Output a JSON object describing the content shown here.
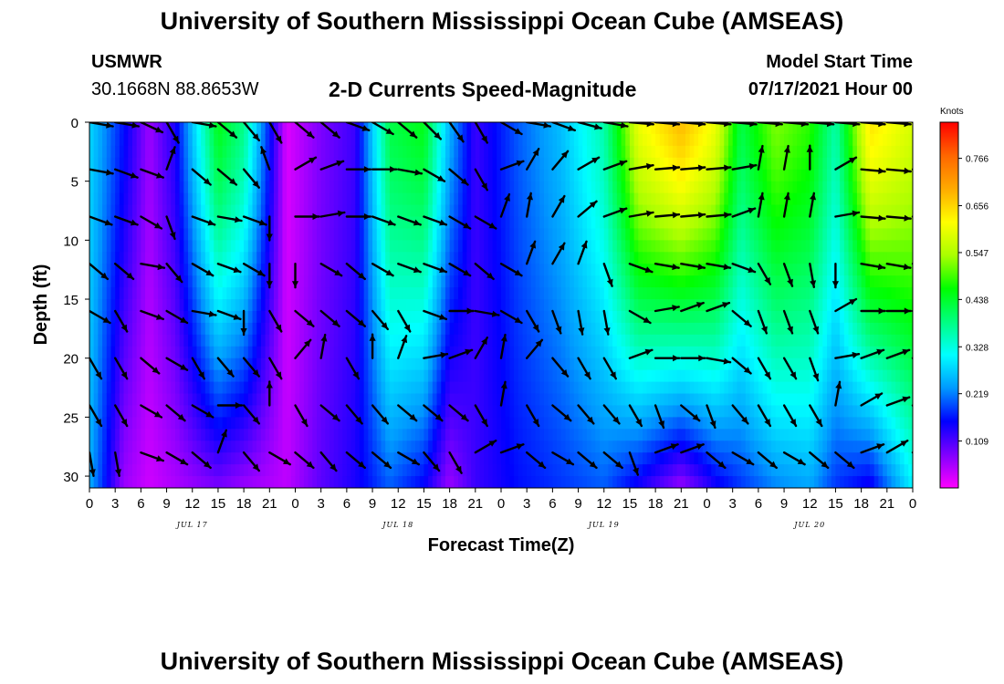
{
  "header": {
    "top_title": "University of Southern Mississippi Ocean Cube (AMSEAS)",
    "bottom_title": "University of Southern Mississippi Ocean Cube (AMSEAS)",
    "station": "USMWR",
    "coordinates": "30.1668N  88.8653W",
    "plot_title": "2-D Currents Speed-Magnitude",
    "model_start_label": "Model Start Time",
    "model_start_value": "07/17/2021 Hour 00"
  },
  "chart_data": {
    "type": "heatmap",
    "title": "2-D Currents Speed-Magnitude",
    "xlabel": "Forecast Time(Z)",
    "ylabel": "Depth (ft)",
    "x_tick_labels": [
      "0",
      "3",
      "6",
      "9",
      "12",
      "15",
      "18",
      "21",
      "0",
      "3",
      "6",
      "9",
      "12",
      "15",
      "18",
      "21",
      "0",
      "3",
      "6",
      "9",
      "12",
      "15",
      "18",
      "21",
      "0",
      "3",
      "6",
      "9",
      "12",
      "15",
      "18",
      "21",
      "0"
    ],
    "x_range_hours": [
      0,
      96
    ],
    "day_labels": [
      {
        "label": "JUL 17",
        "hour": 12
      },
      {
        "label": "JUL 18",
        "hour": 36
      },
      {
        "label": "JUL 19",
        "hour": 60
      },
      {
        "label": "JUL 20",
        "hour": 84
      }
    ],
    "y_ticks": [
      0,
      5,
      10,
      15,
      20,
      25,
      30
    ],
    "ylim": [
      0,
      31
    ],
    "y_inverted": true,
    "colorbar": {
      "title": "Knots",
      "tick_values": [
        0.766,
        0.656,
        0.547,
        0.438,
        0.328,
        0.219,
        0.109
      ],
      "tick_labels": [
        "0.766",
        "0.656",
        "0.547",
        "0.438",
        "0.328",
        "0.219",
        "0.109"
      ],
      "range": [
        0.0,
        0.85
      ],
      "colors": [
        "#ff00ff",
        "#8000ff",
        "#0000ff",
        "#0099ff",
        "#00ffff",
        "#00ff80",
        "#00ff00",
        "#aaff00",
        "#ffff00",
        "#ffaa00",
        "#ff6600",
        "#ff0000"
      ]
    },
    "grid": false,
    "speed_profiles": [
      {
        "hour": 0,
        "surface": 0.28,
        "bottom": 0.25
      },
      {
        "hour": 4,
        "surface": 0.16,
        "bottom": 0.06
      },
      {
        "hour": 7,
        "surface": 0.06,
        "bottom": 0.03
      },
      {
        "hour": 10,
        "surface": 0.14,
        "bottom": 0.05
      },
      {
        "hour": 15,
        "surface": 0.45,
        "bottom": 0.08
      },
      {
        "hour": 18,
        "surface": 0.38,
        "bottom": 0.06
      },
      {
        "hour": 23,
        "surface": 0.02,
        "bottom": 0.04
      },
      {
        "hour": 27,
        "surface": 0.08,
        "bottom": 0.1
      },
      {
        "hour": 31,
        "surface": 0.12,
        "bottom": 0.14
      },
      {
        "hour": 35,
        "surface": 0.42,
        "bottom": 0.2
      },
      {
        "hour": 39,
        "surface": 0.45,
        "bottom": 0.15
      },
      {
        "hour": 42,
        "surface": 0.25,
        "bottom": 0.06
      },
      {
        "hour": 45,
        "surface": 0.12,
        "bottom": 0.12
      },
      {
        "hour": 50,
        "surface": 0.2,
        "bottom": 0.16
      },
      {
        "hour": 55,
        "surface": 0.26,
        "bottom": 0.18
      },
      {
        "hour": 60,
        "surface": 0.36,
        "bottom": 0.2
      },
      {
        "hour": 64,
        "surface": 0.6,
        "bottom": 0.14
      },
      {
        "hour": 69,
        "surface": 0.68,
        "bottom": 0.06
      },
      {
        "hour": 73,
        "surface": 0.6,
        "bottom": 0.14
      },
      {
        "hour": 76,
        "surface": 0.42,
        "bottom": 0.18
      },
      {
        "hour": 80,
        "surface": 0.52,
        "bottom": 0.22
      },
      {
        "hour": 84,
        "surface": 0.48,
        "bottom": 0.24
      },
      {
        "hour": 87,
        "surface": 0.36,
        "bottom": 0.18
      },
      {
        "hour": 91,
        "surface": 0.64,
        "bottom": 0.14
      },
      {
        "hour": 96,
        "surface": 0.58,
        "bottom": 0.3
      }
    ],
    "vector_rows_ft": [
      0,
      4,
      8,
      12,
      16,
      20,
      24,
      28
    ],
    "vector_hours": [
      0,
      3,
      6,
      9,
      12,
      15,
      18,
      21,
      24,
      27,
      30,
      33,
      36,
      39,
      42,
      45,
      48,
      51,
      54,
      57,
      60,
      63,
      66,
      69,
      72,
      75,
      78,
      81,
      84,
      87,
      90,
      93,
      96
    ],
    "vector_directions_deg": [
      [
        -10,
        -10,
        -25,
        -60,
        -10,
        -40,
        -50,
        -60,
        -40,
        -40,
        -20,
        -30,
        -40,
        -45,
        -55,
        -60,
        -30,
        -10,
        -20,
        -15,
        -10,
        -5,
        -5,
        -5,
        -5,
        -5,
        -5,
        -5,
        -5,
        -5,
        -5,
        -5,
        -10
      ],
      [
        -10,
        -20,
        -20,
        70,
        -40,
        -40,
        -50,
        110,
        30,
        20,
        0,
        0,
        -10,
        -30,
        -40,
        -60,
        20,
        60,
        50,
        30,
        20,
        10,
        5,
        5,
        5,
        10,
        80,
        80,
        90,
        30,
        -5,
        -5,
        -10
      ],
      [
        -20,
        -20,
        -30,
        -70,
        -20,
        -10,
        -20,
        -90,
        0,
        10,
        0,
        -20,
        -20,
        -20,
        -30,
        -30,
        70,
        80,
        60,
        40,
        20,
        10,
        5,
        5,
        5,
        20,
        80,
        80,
        80,
        10,
        -5,
        -5,
        -15
      ],
      [
        -40,
        -40,
        -10,
        -50,
        -30,
        -20,
        -30,
        -90,
        -90,
        -30,
        -40,
        -30,
        -20,
        -20,
        -30,
        -40,
        -30,
        70,
        60,
        70,
        -70,
        -20,
        -10,
        -10,
        -10,
        -20,
        -60,
        -70,
        -80,
        -90,
        -10,
        -10,
        -5
      ],
      [
        -30,
        -60,
        -20,
        -30,
        -10,
        -20,
        -90,
        -60,
        -40,
        -40,
        -40,
        -50,
        -60,
        -20,
        0,
        -10,
        -30,
        -60,
        -70,
        -80,
        -80,
        -30,
        10,
        20,
        20,
        -40,
        -70,
        -70,
        -70,
        30,
        0,
        0,
        -10
      ],
      [
        -60,
        -60,
        -40,
        -30,
        -60,
        -50,
        -50,
        -60,
        50,
        80,
        -60,
        90,
        70,
        10,
        20,
        60,
        80,
        50,
        -50,
        -60,
        -60,
        20,
        0,
        0,
        -10,
        -40,
        -60,
        -60,
        -70,
        10,
        20,
        20,
        -60
      ],
      [
        -60,
        -60,
        -30,
        -40,
        -30,
        0,
        -50,
        90,
        -60,
        -40,
        -50,
        -50,
        -40,
        -40,
        -40,
        -60,
        80,
        -60,
        -40,
        -50,
        -50,
        -60,
        -70,
        -40,
        -70,
        -50,
        -60,
        -60,
        -60,
        80,
        30,
        20,
        -60
      ],
      [
        -80,
        -80,
        -20,
        -30,
        -40,
        70,
        -50,
        -30,
        -40,
        -50,
        -40,
        -40,
        -30,
        -50,
        -60,
        30,
        20,
        -40,
        -30,
        -40,
        -40,
        -70,
        20,
        20,
        -40,
        -30,
        -40,
        -30,
        -40,
        -40,
        20,
        30,
        -40
      ]
    ]
  }
}
